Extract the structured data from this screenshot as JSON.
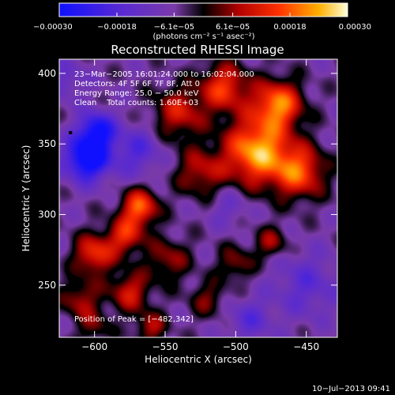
{
  "chart_data": {
    "type": "heatmap",
    "title": "Reconstructed RHESSI Image",
    "xlabel": "Heliocentric X (arcsec)",
    "ylabel": "Heliocentric Y (arcsec)",
    "xlim": [
      -625,
      -428
    ],
    "ylim": [
      213,
      410
    ],
    "x_ticks": [
      -600,
      -550,
      -500,
      -450
    ],
    "y_ticks": [
      250,
      300,
      350,
      400
    ],
    "x_tick_labels": [
      "−600",
      "−550",
      "−500",
      "−450"
    ],
    "y_tick_labels": [
      "250",
      "300",
      "350",
      "400"
    ],
    "colorbar": {
      "range": [
        -0.0003,
        0.0003
      ],
      "ticks": [
        -0.0003,
        -0.00018,
        -6.1e-05,
        6.1e-05,
        0.00018,
        0.0003
      ],
      "tick_labels": [
        "−0.00030",
        "−0.00018",
        "−6.1e−05",
        "6.1e−05",
        "0.00018",
        "0.00030"
      ],
      "units_label": "(photons cm⁻² s⁻¹ asec⁻²)"
    },
    "annotations": [
      "23−Mar−2005 16:01:24.000 to 16:02:04.000",
      "Detectors: 4F 5F 6F 7F 8F, Att 0",
      "Energy Range: 25.0 − 50.0 keV",
      "Clean    Total counts: 1.60E+03"
    ],
    "peak_label": "Position of Peak = [−482,342]",
    "peak": {
      "x": -482,
      "y": 342
    },
    "marker": {
      "x": -617,
      "y": 358
    },
    "timestamp": "10−Jul−2013 09:41",
    "sources": [
      {
        "x": -485,
        "y": 345,
        "value": 0.0003,
        "sigma": 16
      },
      {
        "x": -470,
        "y": 378,
        "value": 0.00026,
        "sigma": 12
      },
      {
        "x": -455,
        "y": 330,
        "value": 0.00022,
        "sigma": 13
      },
      {
        "x": -508,
        "y": 390,
        "value": 0.0002,
        "sigma": 12
      },
      {
        "x": -540,
        "y": 372,
        "value": 0.00016,
        "sigma": 13
      },
      {
        "x": -525,
        "y": 330,
        "value": 0.00014,
        "sigma": 12
      },
      {
        "x": -568,
        "y": 305,
        "value": 0.00024,
        "sigma": 9
      },
      {
        "x": -578,
        "y": 285,
        "value": 0.00018,
        "sigma": 9
      },
      {
        "x": -600,
        "y": 272,
        "value": 0.0002,
        "sigma": 10
      },
      {
        "x": -575,
        "y": 245,
        "value": 0.00016,
        "sigma": 10
      },
      {
        "x": -610,
        "y": 240,
        "value": 0.00013,
        "sigma": 10
      },
      {
        "x": -548,
        "y": 268,
        "value": 0.00012,
        "sigma": 11
      },
      {
        "x": -500,
        "y": 265,
        "value": 0.00011,
        "sigma": 9
      },
      {
        "x": -475,
        "y": 280,
        "value": 0.00012,
        "sigma": 8
      },
      {
        "x": -520,
        "y": 240,
        "value": 0.0001,
        "sigma": 9
      },
      {
        "x": -560,
        "y": 220,
        "value": 0.00013,
        "sigma": 8
      },
      {
        "x": -600,
        "y": 220,
        "value": 9e-05,
        "sigma": 8
      },
      {
        "x": -605,
        "y": 340,
        "value": -0.0003,
        "sigma": 11
      },
      {
        "x": -598,
        "y": 360,
        "value": -0.00022,
        "sigma": 9
      },
      {
        "x": -570,
        "y": 345,
        "value": -0.00012,
        "sigma": 12
      },
      {
        "x": -450,
        "y": 250,
        "value": -0.0001,
        "sigma": 16
      },
      {
        "x": -490,
        "y": 225,
        "value": -0.0001,
        "sigma": 11
      },
      {
        "x": -620,
        "y": 395,
        "value": -8e-05,
        "sigma": 10
      },
      {
        "x": -505,
        "y": 305,
        "value": -7e-05,
        "sigma": 9
      }
    ]
  }
}
